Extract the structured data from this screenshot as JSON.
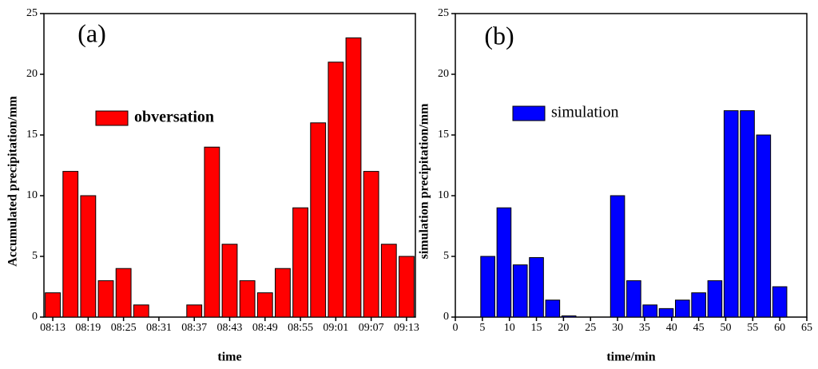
{
  "chart_data": [
    {
      "type": "bar",
      "annotation": "(a)",
      "xlabel": "time",
      "ylabel": "Accumulated precipitation/mm",
      "categories": [
        "08:13",
        null,
        "08:19",
        null,
        "08:25",
        null,
        "08:31",
        null,
        "08:37",
        null,
        "08:43",
        null,
        "08:49",
        null,
        "08:55",
        null,
        "09:01",
        null,
        "09:07",
        null,
        "09:13"
      ],
      "series": [
        {
          "name": "obversation",
          "color": "#ff0000",
          "values": [
            2,
            12,
            10,
            3,
            4,
            1,
            0,
            0,
            1,
            14,
            6,
            3,
            2,
            4,
            9,
            16,
            21,
            23,
            12,
            6,
            5
          ]
        }
      ],
      "ylim": [
        0,
        25
      ],
      "yticks": [
        0,
        5,
        10,
        15,
        20,
        25
      ]
    },
    {
      "type": "bar",
      "annotation": "(b)",
      "xlabel": "time/min",
      "ylabel": "simulation precipitation/mm",
      "x": [
        6,
        9,
        12,
        15,
        18,
        21,
        30,
        33,
        36,
        39,
        42,
        45,
        48,
        51,
        54,
        57,
        60
      ],
      "series": [
        {
          "name": "simulation",
          "color": "#0000ff",
          "values": [
            5,
            9,
            4.3,
            4.9,
            1.4,
            0.1,
            10,
            3,
            1,
            0.7,
            1.4,
            2,
            3,
            17,
            17,
            15,
            2.5
          ]
        }
      ],
      "xlim": [
        0,
        65
      ],
      "xticks": [
        0,
        5,
        10,
        15,
        20,
        25,
        30,
        35,
        40,
        45,
        50,
        55,
        60,
        65
      ],
      "ylim": [
        0,
        25
      ],
      "yticks": [
        0,
        5,
        10,
        15,
        20,
        25
      ]
    }
  ]
}
